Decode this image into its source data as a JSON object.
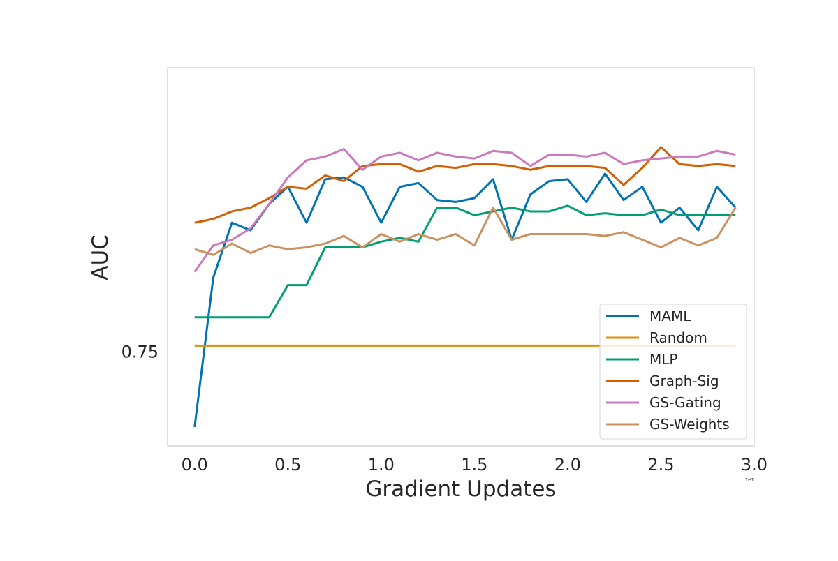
{
  "chart_data": {
    "type": "line",
    "xlabel": "Gradient Updates",
    "ylabel": "AUC",
    "x_offset_text": "1e1",
    "x_scale_factor": 10,
    "xlim": [
      -0.145,
      3.0
    ],
    "ylim": [
      0.7,
      0.9
    ],
    "x_ticks": [
      "0.0",
      "0.5",
      "1.0",
      "1.5",
      "2.0",
      "2.5",
      "3.0"
    ],
    "x_tick_values": [
      0.0,
      0.5,
      1.0,
      1.5,
      2.0,
      2.5,
      3.0
    ],
    "y_ticks": [
      "0.75"
    ],
    "y_tick_values": [
      0.75
    ],
    "grid": false,
    "legend_position": "lower-right",
    "x": [
      0.0,
      0.1,
      0.2,
      0.3,
      0.4,
      0.5,
      0.6,
      0.7,
      0.8,
      0.9,
      1.0,
      1.1,
      1.2,
      1.3,
      1.4,
      1.5,
      1.6,
      1.7,
      1.8,
      1.9,
      2.0,
      2.1,
      2.2,
      2.3,
      2.4,
      2.5,
      2.6,
      2.7,
      2.8,
      2.9
    ],
    "series": [
      {
        "name": "MAML",
        "color": "#0173b2",
        "values": [
          0.71,
          0.789,
          0.818,
          0.814,
          0.828,
          0.837,
          0.818,
          0.841,
          0.842,
          0.837,
          0.818,
          0.837,
          0.839,
          0.83,
          0.829,
          0.831,
          0.841,
          0.809,
          0.833,
          0.84,
          0.841,
          0.829,
          0.844,
          0.83,
          0.837,
          0.818,
          0.826,
          0.814,
          0.837,
          0.826
        ]
      },
      {
        "name": "Random",
        "color": "#de8f05",
        "values": [
          0.753,
          0.753,
          0.753,
          0.753,
          0.753,
          0.753,
          0.753,
          0.753,
          0.753,
          0.753,
          0.753,
          0.753,
          0.753,
          0.753,
          0.753,
          0.753,
          0.753,
          0.753,
          0.753,
          0.753,
          0.753,
          0.753,
          0.753,
          0.753,
          0.753,
          0.753,
          0.753,
          0.753,
          0.753,
          0.753
        ]
      },
      {
        "name": "MLP",
        "color": "#029e73",
        "values": [
          0.768,
          0.768,
          0.768,
          0.768,
          0.768,
          0.785,
          0.785,
          0.805,
          0.805,
          0.805,
          0.808,
          0.81,
          0.808,
          0.826,
          0.826,
          0.822,
          0.824,
          0.826,
          0.824,
          0.824,
          0.827,
          0.822,
          0.823,
          0.822,
          0.822,
          0.825,
          0.822,
          0.822,
          0.822,
          0.822
        ]
      },
      {
        "name": "Graph-Sig",
        "color": "#d55e00",
        "values": [
          0.818,
          0.82,
          0.824,
          0.826,
          0.831,
          0.837,
          0.836,
          0.843,
          0.84,
          0.848,
          0.849,
          0.849,
          0.845,
          0.848,
          0.847,
          0.849,
          0.849,
          0.848,
          0.846,
          0.848,
          0.848,
          0.848,
          0.847,
          0.838,
          0.847,
          0.858,
          0.849,
          0.848,
          0.849,
          0.848
        ]
      },
      {
        "name": "GS-Gating",
        "color": "#cc78bc",
        "values": [
          0.792,
          0.806,
          0.809,
          0.815,
          0.828,
          0.842,
          0.851,
          0.853,
          0.857,
          0.846,
          0.853,
          0.855,
          0.851,
          0.855,
          0.853,
          0.852,
          0.856,
          0.855,
          0.848,
          0.854,
          0.854,
          0.853,
          0.855,
          0.849,
          0.851,
          0.852,
          0.853,
          0.853,
          0.856,
          0.854
        ]
      },
      {
        "name": "GS-Weights",
        "color": "#ca9161",
        "values": [
          0.804,
          0.801,
          0.807,
          0.802,
          0.806,
          0.804,
          0.805,
          0.807,
          0.811,
          0.805,
          0.812,
          0.808,
          0.812,
          0.809,
          0.812,
          0.806,
          0.826,
          0.809,
          0.812,
          0.812,
          0.812,
          0.812,
          0.811,
          0.813,
          0.809,
          0.805,
          0.81,
          0.806,
          0.81,
          0.826
        ]
      }
    ]
  }
}
